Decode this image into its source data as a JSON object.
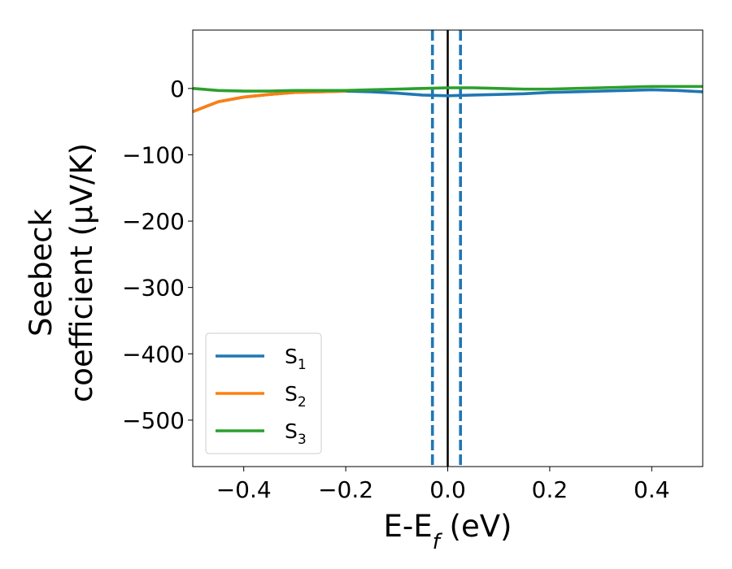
{
  "chart_data": {
    "type": "line",
    "xlabel_main": "E-E",
    "xlabel_sub": "f",
    "xlabel_unit": " (eV)",
    "ylabel_line1": "Seebeck",
    "ylabel_line2": "coefficient  (μV/K)",
    "xlim": [
      -0.5,
      0.5
    ],
    "ylim": [
      -570,
      88
    ],
    "xticks": [
      -0.4,
      -0.2,
      0.0,
      0.2,
      0.4
    ],
    "xtick_labels": [
      "−0.4",
      "−0.2",
      "0.0",
      "0.2",
      "0.4"
    ],
    "yticks": [
      0,
      -100,
      -200,
      -300,
      -400,
      -500
    ],
    "ytick_labels": [
      "0",
      "−100",
      "−200",
      "−300",
      "−400",
      "−500"
    ],
    "grid": false,
    "legend_position": "lower-left",
    "vlines": [
      {
        "x": -0.03,
        "style": "dashed",
        "color": "#1f77b4"
      },
      {
        "x": 0.0,
        "style": "solid",
        "color": "#000000"
      },
      {
        "x": 0.025,
        "style": "dashed",
        "color": "#1f77b4"
      }
    ],
    "series": [
      {
        "name_main": "S",
        "name_sub": "1",
        "color": "#1f77b4",
        "x": [
          -0.5,
          -0.45,
          -0.4,
          -0.35,
          -0.3,
          -0.25,
          -0.2,
          -0.15,
          -0.1,
          -0.05,
          0.0,
          0.05,
          0.1,
          0.15,
          0.2,
          0.25,
          0.3,
          0.35,
          0.4,
          0.45,
          0.5
        ],
        "y": [
          -35,
          -20,
          -13,
          -9,
          -6,
          -5,
          -4,
          -5,
          -7,
          -10,
          -11,
          -10,
          -9,
          -8,
          -6,
          -5,
          -4,
          -3,
          -2,
          -3,
          -5
        ]
      },
      {
        "name_main": "S",
        "name_sub": "2",
        "color": "#ff7f0e",
        "x": [
          -0.5,
          -0.45,
          -0.4,
          -0.35,
          -0.3,
          -0.25,
          -0.2
        ],
        "y": [
          -35,
          -20,
          -13,
          -9,
          -6,
          -5,
          -4
        ]
      },
      {
        "name_main": "S",
        "name_sub": "3",
        "color": "#2ca02c",
        "x": [
          -0.5,
          -0.45,
          -0.4,
          -0.35,
          -0.3,
          -0.25,
          -0.2,
          -0.15,
          -0.1,
          -0.05,
          0.0,
          0.05,
          0.1,
          0.15,
          0.2,
          0.25,
          0.3,
          0.35,
          0.4,
          0.45,
          0.5
        ],
        "y": [
          0,
          -3,
          -4,
          -4,
          -3,
          -3,
          -3,
          -2,
          -1,
          0,
          1,
          1,
          0,
          -1,
          -1,
          0,
          1,
          2,
          3,
          3,
          3
        ]
      }
    ]
  }
}
